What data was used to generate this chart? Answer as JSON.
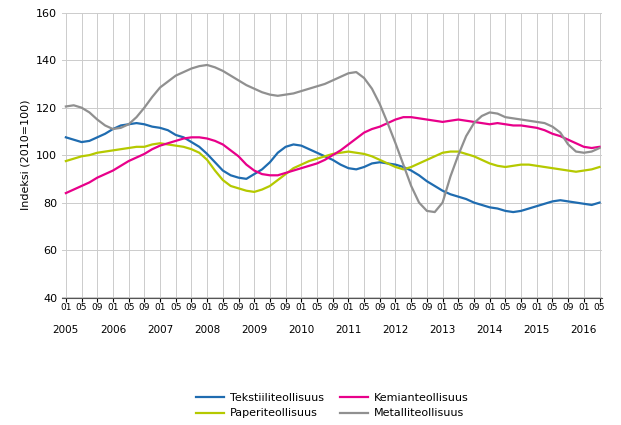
{
  "ylabel": "Indeksi (2010=100)",
  "ylim": [
    40,
    160
  ],
  "yticks": [
    40,
    60,
    80,
    100,
    120,
    140,
    160
  ],
  "colors": {
    "tekstiili": "#1f6cb0",
    "paperi": "#b5c900",
    "kemia": "#e8008a",
    "metalli": "#909090"
  },
  "legend_labels": [
    "Tekstiiliteollisuus",
    "Paperiteollisuus",
    "Kemianteollisuus",
    "Metalliteollisuus"
  ],
  "tekstiili": [
    107.5,
    106.5,
    105.5,
    106.0,
    107.5,
    109.0,
    111.0,
    112.5,
    113.0,
    113.5,
    113.0,
    112.0,
    111.5,
    110.5,
    108.5,
    107.5,
    105.5,
    103.5,
    100.5,
    97.0,
    93.5,
    91.5,
    90.5,
    90.0,
    92.0,
    94.0,
    97.0,
    101.0,
    103.5,
    104.5,
    104.0,
    102.5,
    101.0,
    99.5,
    98.0,
    96.0,
    94.5,
    94.0,
    95.0,
    96.5,
    97.0,
    96.5,
    96.0,
    95.0,
    93.5,
    91.5,
    89.0,
    87.0,
    85.0,
    83.5,
    82.5,
    81.5,
    80.0,
    79.0,
    78.0,
    77.5,
    76.5,
    76.0,
    76.5,
    77.5,
    78.5,
    79.5,
    80.5,
    81.0,
    80.5,
    80.0,
    79.5,
    79.0,
    80.0
  ],
  "paperi": [
    97.5,
    98.5,
    99.5,
    100.0,
    101.0,
    101.5,
    102.0,
    102.5,
    103.0,
    103.5,
    103.5,
    104.5,
    105.0,
    104.5,
    104.0,
    103.5,
    102.5,
    101.0,
    98.0,
    93.5,
    89.5,
    87.0,
    86.0,
    85.0,
    84.5,
    85.5,
    87.0,
    89.5,
    92.0,
    94.5,
    96.0,
    97.5,
    98.5,
    99.5,
    100.5,
    101.0,
    101.5,
    101.0,
    100.5,
    99.5,
    98.0,
    96.5,
    95.0,
    94.0,
    95.0,
    96.5,
    98.0,
    99.5,
    101.0,
    101.5,
    101.5,
    100.5,
    99.5,
    98.0,
    96.5,
    95.5,
    95.0,
    95.5,
    96.0,
    96.0,
    95.5,
    95.0,
    94.5,
    94.0,
    93.5,
    93.0,
    93.5,
    94.0,
    95.0
  ],
  "kemia": [
    84.0,
    85.5,
    87.0,
    88.5,
    90.5,
    92.0,
    93.5,
    95.5,
    97.5,
    99.0,
    100.5,
    102.5,
    104.0,
    105.0,
    106.0,
    107.0,
    107.5,
    107.5,
    107.0,
    106.0,
    104.5,
    102.0,
    99.5,
    96.0,
    93.5,
    92.0,
    91.5,
    91.5,
    92.5,
    93.5,
    94.5,
    95.5,
    96.5,
    98.0,
    100.0,
    102.0,
    104.5,
    107.0,
    109.5,
    111.0,
    112.0,
    113.5,
    115.0,
    116.0,
    116.0,
    115.5,
    115.0,
    114.5,
    114.0,
    114.5,
    115.0,
    114.5,
    114.0,
    113.5,
    113.0,
    113.5,
    113.0,
    112.5,
    112.5,
    112.0,
    111.5,
    110.5,
    109.0,
    108.0,
    106.5,
    105.0,
    103.5,
    103.0,
    103.5
  ],
  "metalli": [
    120.5,
    121.0,
    120.0,
    118.0,
    115.0,
    112.5,
    111.0,
    111.5,
    113.0,
    116.0,
    120.0,
    124.5,
    128.5,
    131.0,
    133.5,
    135.0,
    136.5,
    137.5,
    138.0,
    137.0,
    135.5,
    133.5,
    131.5,
    129.5,
    128.0,
    126.5,
    125.5,
    125.0,
    125.5,
    126.0,
    127.0,
    128.0,
    129.0,
    130.0,
    131.5,
    133.0,
    134.5,
    135.0,
    132.5,
    128.0,
    121.5,
    113.5,
    105.0,
    96.0,
    87.0,
    80.0,
    76.5,
    76.0,
    80.0,
    91.0,
    100.0,
    108.0,
    113.5,
    116.5,
    118.0,
    117.5,
    116.0,
    115.5,
    115.0,
    114.5,
    114.0,
    113.5,
    112.0,
    109.5,
    104.5,
    101.5,
    101.0,
    101.5,
    103.0
  ]
}
